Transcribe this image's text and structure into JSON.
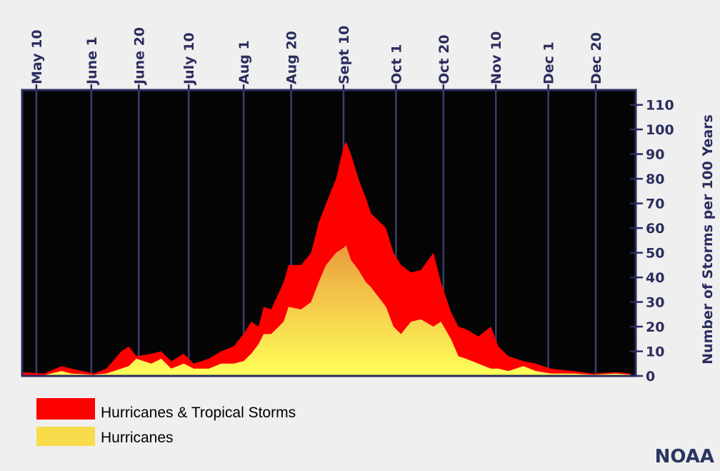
{
  "chart_data": {
    "type": "area",
    "title": "",
    "xlabel": "",
    "ylabel": "Number of Storms per 100 Years",
    "x_units": "day of year",
    "xlim": [
      124.3,
      370
    ],
    "ylim": [
      0,
      116
    ],
    "grid": "vertical",
    "x_ticks": [
      {
        "label": "May 10",
        "x": 130
      },
      {
        "label": "June 1",
        "x": 152
      },
      {
        "label": "June 20",
        "x": 171
      },
      {
        "label": "July 10",
        "x": 191
      },
      {
        "label": "Aug 1",
        "x": 213
      },
      {
        "label": "Aug 20",
        "x": 232
      },
      {
        "label": "Sept 10",
        "x": 253
      },
      {
        "label": "Oct 1",
        "x": 274
      },
      {
        "label": "Oct 20",
        "x": 293
      },
      {
        "label": "Nov 10",
        "x": 314
      },
      {
        "label": "Dec 1",
        "x": 335
      },
      {
        "label": "Dec 20",
        "x": 354
      }
    ],
    "y_ticks": [
      0,
      10,
      20,
      30,
      40,
      50,
      60,
      70,
      80,
      90,
      100,
      110
    ],
    "x": [
      124,
      133,
      140,
      144,
      153,
      158,
      164,
      167,
      170,
      176,
      180,
      184,
      189,
      193,
      199,
      204,
      209,
      213,
      216,
      219,
      221,
      224,
      229,
      231,
      236,
      240,
      243,
      246,
      250,
      253,
      254,
      256,
      259,
      262,
      264,
      270,
      273,
      276,
      280,
      284,
      289,
      292,
      296,
      299,
      302,
      307,
      312,
      315,
      319,
      325,
      330,
      336,
      345,
      353,
      362,
      368
    ],
    "series": [
      {
        "name": "Hurricanes & Tropical Storms",
        "color": "#ff0000",
        "values": [
          1.5,
          1,
          4,
          3,
          1,
          3,
          10,
          12,
          8,
          9,
          10,
          6,
          9,
          5,
          7,
          10,
          12,
          17,
          22,
          20,
          28,
          27,
          38,
          45,
          45,
          50,
          62,
          70,
          80,
          93,
          95,
          90,
          80,
          72,
          66,
          60,
          50,
          45,
          42,
          43,
          50,
          38,
          26,
          20,
          19,
          16,
          20,
          12,
          8,
          6,
          5,
          3,
          2,
          1,
          1.5,
          1
        ]
      },
      {
        "name": "Hurricanes",
        "color": "#f5dc50",
        "values": [
          0,
          0.3,
          2,
          1,
          0.5,
          1,
          3,
          4,
          7,
          5,
          7,
          3,
          5,
          3,
          3,
          5,
          5,
          6,
          9,
          13,
          17,
          17,
          22,
          28,
          27,
          30,
          38,
          45,
          50,
          52,
          53,
          47,
          43,
          38,
          36,
          28,
          20,
          17,
          22,
          23,
          20,
          22,
          15,
          8,
          7,
          5,
          3,
          3,
          2,
          4,
          2,
          1,
          1,
          0.5,
          1,
          0.5
        ]
      }
    ],
    "legend": {
      "placement": "bottom-left"
    }
  },
  "colors": {
    "frame": "#2b2d5e",
    "plot_bg": "#050505",
    "grid": "#3b3e70"
  },
  "credit": "NOAA"
}
